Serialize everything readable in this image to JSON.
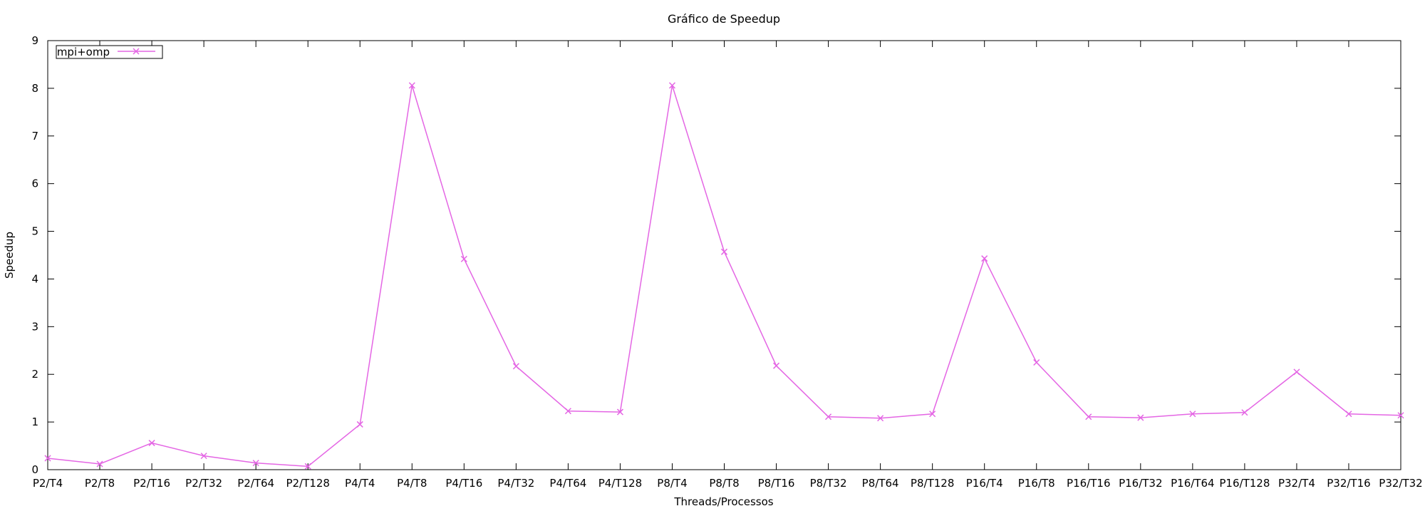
{
  "chart_data": {
    "type": "line",
    "title": "Gráfico de Speedup",
    "xlabel": "Threads/Processos",
    "ylabel": "Speedup",
    "ylim": [
      0,
      9
    ],
    "yticks": [
      0,
      1,
      2,
      3,
      4,
      5,
      6,
      7,
      8,
      9
    ],
    "grid": false,
    "legend_position": "top-left",
    "categories": [
      "P2/T4",
      "P2/T8",
      "P2/T16",
      "P2/T32",
      "P2/T64",
      "P2/T128",
      "P4/T4",
      "P4/T8",
      "P4/T16",
      "P4/T32",
      "P4/T64",
      "P4/T128",
      "P8/T4",
      "P8/T8",
      "P8/T16",
      "P8/T32",
      "P8/T64",
      "P8/T128",
      "P16/T4",
      "P16/T8",
      "P16/T16",
      "P16/T32",
      "P16/T64",
      "P16/T128",
      "P32/T4",
      "P32/T16",
      "P32/T32"
    ],
    "series": [
      {
        "name": "mpi+omp",
        "color": "#e466e4",
        "marker": "x",
        "values": [
          0.24,
          0.12,
          0.56,
          0.29,
          0.14,
          0.07,
          0.95,
          8.06,
          4.42,
          2.17,
          1.23,
          1.21,
          8.06,
          4.57,
          2.18,
          1.11,
          1.08,
          1.17,
          4.43,
          2.25,
          1.11,
          1.09,
          1.17,
          1.2,
          2.05,
          1.17,
          1.14
        ]
      }
    ]
  }
}
